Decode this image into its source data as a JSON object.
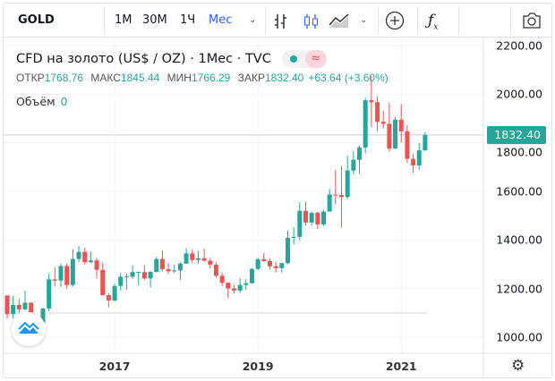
{
  "toolbar": {
    "symbol": "GOLD",
    "intervals": [
      "1M",
      "30M",
      "1Ч",
      "Мес"
    ],
    "active_interval": "Мес",
    "icons": [
      "chevron-down-icon",
      "bar-chart-icon",
      "candlestick-icon",
      "area-chart-icon",
      "chevron-down-icon",
      "plus-circle-icon",
      "fx-icon",
      "camera-icon"
    ]
  },
  "legend": {
    "title": "CFD на золото (US$ / OZ) · 1Мес · TVC",
    "open_label": "ОТКР",
    "open": "1768.76",
    "high_label": "МАКС",
    "high": "1845.44",
    "low_label": "МИН",
    "low": "1766.29",
    "close_label": "ЗАКР",
    "close": "1832.40",
    "change": "+63.64 (+3.60%)",
    "volume_label": "Объём",
    "volume": "0"
  },
  "price_tag": "1832.40",
  "colors": {
    "up": "#26a69a",
    "down": "#ef5350",
    "accent": "#2962ff"
  },
  "chart_data": {
    "type": "candlestick",
    "title": "CFD на золото (US$ / OZ) · 1Мес · TVC",
    "start": "2015-07",
    "interval": "1 month",
    "ylim": [
      934,
      2233
    ],
    "yticks": [
      "2200.00",
      "2000.00",
      "1800.00",
      "1600.00",
      "1400.00",
      "1200.00",
      "1000.00"
    ],
    "xticks": [
      "2017",
      "2019",
      "2021"
    ],
    "last_price": 1832.4,
    "ohlc": [
      [
        1172,
        1172,
        1077,
        1095
      ],
      [
        1095,
        1170,
        1077,
        1133
      ],
      [
        1133,
        1157,
        1098,
        1115
      ],
      [
        1115,
        1191,
        1111,
        1142
      ],
      [
        1142,
        1143,
        1052,
        1065
      ],
      [
        1065,
        1088,
        1046,
        1061
      ],
      [
        1061,
        1123,
        1062,
        1118
      ],
      [
        1118,
        1263,
        1107,
        1238
      ],
      [
        1238,
        1287,
        1208,
        1233
      ],
      [
        1233,
        1304,
        1207,
        1293
      ],
      [
        1293,
        1303,
        1200,
        1215
      ],
      [
        1215,
        1362,
        1207,
        1322
      ],
      [
        1322,
        1375,
        1310,
        1351
      ],
      [
        1351,
        1367,
        1300,
        1309
      ],
      [
        1309,
        1353,
        1305,
        1316
      ],
      [
        1316,
        1326,
        1241,
        1277
      ],
      [
        1277,
        1307,
        1171,
        1173
      ],
      [
        1173,
        1180,
        1123,
        1151
      ],
      [
        1151,
        1220,
        1147,
        1211
      ],
      [
        1211,
        1264,
        1192,
        1249
      ],
      [
        1249,
        1261,
        1195,
        1250
      ],
      [
        1249,
        1295,
        1241,
        1268
      ],
      [
        1268,
        1270,
        1214,
        1269
      ],
      [
        1268,
        1296,
        1236,
        1242
      ],
      [
        1242,
        1272,
        1205,
        1269
      ],
      [
        1269,
        1331,
        1267,
        1322
      ],
      [
        1322,
        1357,
        1271,
        1280
      ],
      [
        1280,
        1306,
        1260,
        1271
      ],
      [
        1271,
        1299,
        1264,
        1275
      ],
      [
        1275,
        1309,
        1236,
        1303
      ],
      [
        1303,
        1366,
        1302,
        1345
      ],
      [
        1345,
        1361,
        1307,
        1318
      ],
      [
        1318,
        1356,
        1303,
        1325
      ],
      [
        1325,
        1365,
        1311,
        1315
      ],
      [
        1315,
        1326,
        1282,
        1299
      ],
      [
        1299,
        1309,
        1246,
        1253
      ],
      [
        1253,
        1266,
        1211,
        1224
      ],
      [
        1224,
        1225,
        1160,
        1201
      ],
      [
        1201,
        1214,
        1180,
        1192
      ],
      [
        1192,
        1243,
        1183,
        1215
      ],
      [
        1215,
        1237,
        1196,
        1222
      ],
      [
        1222,
        1285,
        1221,
        1281
      ],
      [
        1281,
        1326,
        1276,
        1321
      ],
      [
        1321,
        1347,
        1310,
        1313
      ],
      [
        1313,
        1324,
        1280,
        1292
      ],
      [
        1292,
        1310,
        1266,
        1284
      ],
      [
        1284,
        1306,
        1266,
        1305
      ],
      [
        1305,
        1439,
        1301,
        1409
      ],
      [
        1409,
        1453,
        1382,
        1413
      ],
      [
        1413,
        1555,
        1400,
        1520
      ],
      [
        1520,
        1557,
        1459,
        1472
      ],
      [
        1472,
        1517,
        1459,
        1512
      ],
      [
        1512,
        1516,
        1445,
        1464
      ],
      [
        1464,
        1524,
        1459,
        1517
      ],
      [
        1517,
        1611,
        1517,
        1587
      ],
      [
        1587,
        1689,
        1547,
        1585
      ],
      [
        1585,
        1704,
        1451,
        1577
      ],
      [
        1577,
        1747,
        1568,
        1686
      ],
      [
        1686,
        1765,
        1670,
        1730
      ],
      [
        1730,
        1789,
        1671,
        1781
      ],
      [
        1781,
        1984,
        1757,
        1975
      ],
      [
        1975,
        2075,
        1863,
        1967
      ],
      [
        1967,
        1992,
        1848,
        1886
      ],
      [
        1886,
        1933,
        1860,
        1878
      ],
      [
        1878,
        1965,
        1764,
        1776
      ],
      [
        1776,
        1906,
        1775,
        1895
      ],
      [
        1895,
        1959,
        1802,
        1847
      ],
      [
        1847,
        1872,
        1717,
        1734
      ],
      [
        1734,
        1755,
        1676,
        1707
      ],
      [
        1707,
        1798,
        1690,
        1769
      ],
      [
        1769,
        1845,
        1766,
        1832
      ]
    ]
  }
}
